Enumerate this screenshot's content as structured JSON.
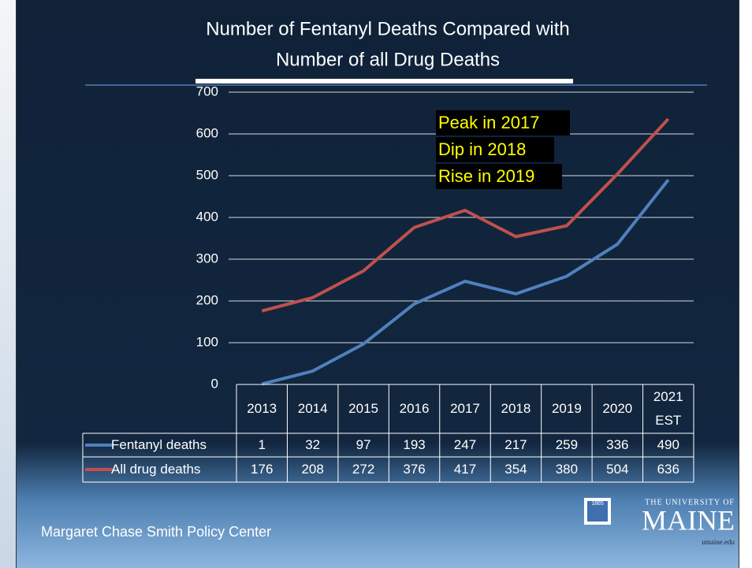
{
  "chart_data": {
    "type": "line",
    "title": [
      "Number of Fentanyl Deaths Compared with",
      "Number of all Drug Deaths"
    ],
    "annotation": [
      "Peak in 2017",
      "Dip in 2018",
      "Rise in 2019"
    ],
    "categories": [
      "2013",
      "2014",
      "2015",
      "2016",
      "2017",
      "2018",
      "2019",
      "2020",
      "2021 EST"
    ],
    "series": [
      {
        "name": "Fentanyl deaths",
        "color": "#4f81bd",
        "values": [
          1,
          32,
          97,
          193,
          247,
          217,
          259,
          336,
          490
        ]
      },
      {
        "name": "All drug deaths",
        "color": "#c0504d",
        "values": [
          176,
          208,
          272,
          376,
          417,
          354,
          380,
          504,
          636
        ]
      }
    ],
    "ylim": [
      0,
      700
    ],
    "yticks": [
      0,
      100,
      200,
      300,
      400,
      500,
      600,
      700
    ],
    "grid": true
  },
  "footer": "Margaret Chase Smith Policy Center",
  "logo": {
    "year": "1865",
    "text": "THE UNIVERSITY OF",
    "name": "MAINE",
    "url": "umaine.edu"
  }
}
